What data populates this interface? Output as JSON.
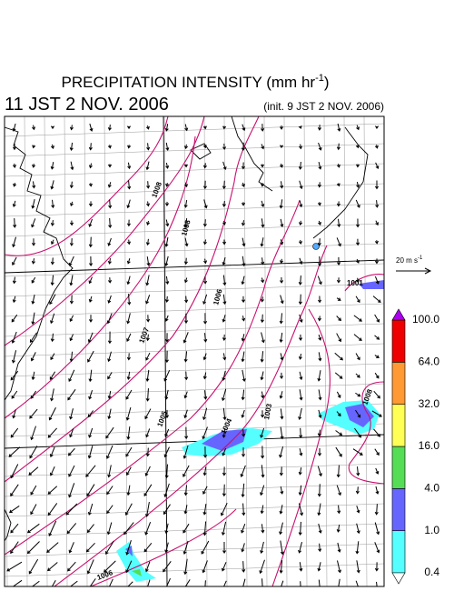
{
  "header": {
    "title": "PRECIPITATION INTENSITY (mm hr",
    "title_superscript": "-1",
    "title_end": ")",
    "valid_time": "11 JST 2 NOV. 2006",
    "init_time": "(init. 9 JST 2 NOV. 2006)"
  },
  "wind_scale": {
    "label": "20 m s",
    "label_superscript": "-1"
  },
  "colorbar": {
    "labels": [
      "0.4",
      "1.0",
      "4.0",
      "16.0",
      "32.0",
      "64.0",
      "100.0"
    ]
  },
  "isobars": {
    "labels": [
      "1008",
      "1008",
      "1007",
      "1006",
      "1005",
      "1004",
      "1003",
      "1001",
      "1008",
      "1006"
    ]
  }
}
